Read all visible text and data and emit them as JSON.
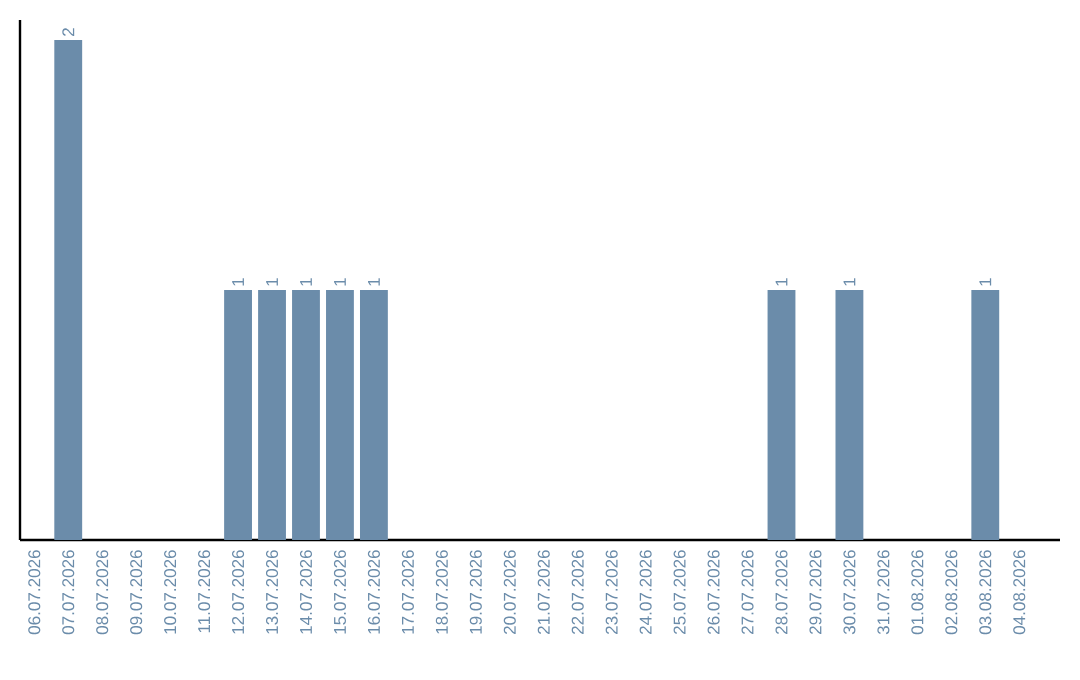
{
  "chart_data": {
    "type": "bar",
    "categories": [
      "06.07.2026",
      "07.07.2026",
      "08.07.2026",
      "09.07.2026",
      "10.07.2026",
      "11.07.2026",
      "12.07.2026",
      "13.07.2026",
      "14.07.2026",
      "15.07.2026",
      "16.07.2026",
      "17.07.2026",
      "18.07.2026",
      "19.07.2026",
      "20.07.2026",
      "21.07.2026",
      "22.07.2026",
      "23.07.2026",
      "24.07.2026",
      "25.07.2026",
      "26.07.2026",
      "27.07.2026",
      "28.07.2026",
      "29.07.2026",
      "30.07.2026",
      "31.07.2026",
      "01.08.2026",
      "02.08.2026",
      "03.08.2026",
      "04.08.2026"
    ],
    "values": [
      0,
      2,
      0,
      0,
      0,
      0,
      1,
      1,
      1,
      1,
      1,
      0,
      0,
      0,
      0,
      0,
      0,
      0,
      0,
      0,
      0,
      0,
      1,
      0,
      1,
      0,
      0,
      0,
      1,
      0
    ],
    "value_labels": [
      null,
      "2",
      null,
      null,
      null,
      null,
      "1",
      "1",
      "1",
      "1",
      "1",
      null,
      null,
      null,
      null,
      null,
      null,
      null,
      null,
      null,
      null,
      null,
      "1",
      null,
      "1",
      null,
      null,
      null,
      "1",
      null
    ],
    "color": "#6b8caa",
    "ylim": [
      0,
      2.08
    ],
    "tick_labels": "x",
    "grid": false
  }
}
